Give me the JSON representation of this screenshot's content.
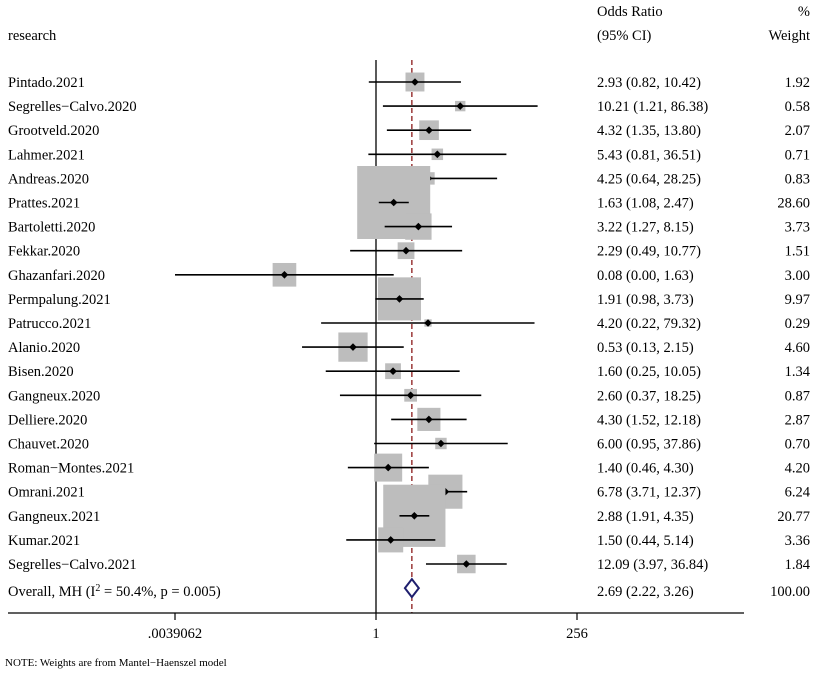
{
  "chart_data": {
    "type": "forest",
    "headers": {
      "study": "research",
      "effect_line1": "Odds Ratio",
      "effect_line2": "(95% CI)",
      "weight_line1": "%",
      "weight_line2": "Weight"
    },
    "scale": "log2",
    "xlim": [
      0.0039062,
      256
    ],
    "ticks": [
      {
        "value": 0.0039062,
        "label": ".0039062"
      },
      {
        "value": 1,
        "label": "1"
      },
      {
        "value": 256,
        "label": "256"
      }
    ],
    "studies": [
      {
        "name": "Pintado.2021",
        "or": 2.93,
        "lo": 0.82,
        "hi": 10.42,
        "ci_text": "2.93 (0.82, 10.42)",
        "weight": 1.92,
        "weight_text": "1.92"
      },
      {
        "name": "Segrelles−Calvo.2020",
        "or": 10.21,
        "lo": 1.21,
        "hi": 86.38,
        "ci_text": "10.21 (1.21, 86.38)",
        "weight": 0.58,
        "weight_text": "0.58"
      },
      {
        "name": "Grootveld.2020",
        "or": 4.32,
        "lo": 1.35,
        "hi": 13.8,
        "ci_text": "4.32 (1.35, 13.80)",
        "weight": 2.07,
        "weight_text": "2.07"
      },
      {
        "name": "Lahmer.2021",
        "or": 5.43,
        "lo": 0.81,
        "hi": 36.51,
        "ci_text": "5.43 (0.81, 36.51)",
        "weight": 0.71,
        "weight_text": "0.71"
      },
      {
        "name": "Andreas.2020",
        "or": 4.25,
        "lo": 0.64,
        "hi": 28.25,
        "ci_text": "4.25 (0.64, 28.25)",
        "weight": 0.83,
        "weight_text": "0.83"
      },
      {
        "name": "Prattes.2021",
        "or": 1.63,
        "lo": 1.08,
        "hi": 2.47,
        "ci_text": "1.63 (1.08, 2.47)",
        "weight": 28.6,
        "weight_text": "28.60"
      },
      {
        "name": "Bartoletti.2020",
        "or": 3.22,
        "lo": 1.27,
        "hi": 8.15,
        "ci_text": "3.22 (1.27, 8.15)",
        "weight": 3.73,
        "weight_text": "3.73"
      },
      {
        "name": "Fekkar.2020",
        "or": 2.29,
        "lo": 0.49,
        "hi": 10.77,
        "ci_text": "2.29 (0.49, 10.77)",
        "weight": 1.51,
        "weight_text": "1.51"
      },
      {
        "name": "Ghazanfari.2020",
        "or": 0.08,
        "lo": 0.0,
        "hi": 1.63,
        "lo_plot": 0.0039062,
        "ci_text": "0.08 (0.00, 1.63)",
        "weight": 3.0,
        "weight_text": "3.00"
      },
      {
        "name": "Permpalung.2021",
        "or": 1.91,
        "lo": 0.98,
        "hi": 3.73,
        "ci_text": "1.91 (0.98, 3.73)",
        "weight": 9.97,
        "weight_text": "9.97"
      },
      {
        "name": "Patrucco.2021",
        "or": 4.2,
        "lo": 0.22,
        "hi": 79.32,
        "ci_text": "4.20 (0.22, 79.32)",
        "weight": 0.29,
        "weight_text": "0.29"
      },
      {
        "name": "Alanio.2020",
        "or": 0.53,
        "lo": 0.13,
        "hi": 2.15,
        "ci_text": "0.53 (0.13, 2.15)",
        "weight": 4.6,
        "weight_text": "4.60"
      },
      {
        "name": "Bisen.2020",
        "or": 1.6,
        "lo": 0.25,
        "hi": 10.05,
        "ci_text": "1.60 (0.25, 10.05)",
        "weight": 1.34,
        "weight_text": "1.34"
      },
      {
        "name": "Gangneux.2020",
        "or": 2.6,
        "lo": 0.37,
        "hi": 18.25,
        "ci_text": "2.60 (0.37, 18.25)",
        "weight": 0.87,
        "weight_text": "0.87"
      },
      {
        "name": "Delliere.2020",
        "or": 4.3,
        "lo": 1.52,
        "hi": 12.18,
        "ci_text": "4.30 (1.52, 12.18)",
        "weight": 2.87,
        "weight_text": "2.87"
      },
      {
        "name": "Chauvet.2020",
        "or": 6.0,
        "lo": 0.95,
        "hi": 37.86,
        "ci_text": "6.00 (0.95, 37.86)",
        "weight": 0.7,
        "weight_text": "0.70"
      },
      {
        "name": "Roman−Montes.2021",
        "or": 1.4,
        "lo": 0.46,
        "hi": 4.3,
        "ci_text": "1.40 (0.46, 4.30)",
        "weight": 4.2,
        "weight_text": "4.20"
      },
      {
        "name": "Omrani.2021",
        "or": 6.78,
        "lo": 3.71,
        "hi": 12.37,
        "ci_text": "6.78 (3.71, 12.37)",
        "weight": 6.24,
        "weight_text": "6.24"
      },
      {
        "name": "Gangneux.2021",
        "or": 2.88,
        "lo": 1.91,
        "hi": 4.35,
        "ci_text": "2.88 (1.91, 4.35)",
        "weight": 20.77,
        "weight_text": "20.77"
      },
      {
        "name": "Kumar.2021",
        "or": 1.5,
        "lo": 0.44,
        "hi": 5.14,
        "ci_text": "1.50 (0.44, 5.14)",
        "weight": 3.36,
        "weight_text": "3.36"
      },
      {
        "name": "Segrelles−Calvo.2021",
        "or": 12.09,
        "lo": 3.97,
        "hi": 36.84,
        "ci_text": "12.09 (3.97, 36.84)",
        "weight": 1.84,
        "weight_text": "1.84"
      }
    ],
    "overall": {
      "label_prefix": "Overall, MH (I",
      "label_sup": "2",
      "label_suffix": " = 50.4%, p = 0.005)",
      "or": 2.69,
      "lo": 2.22,
      "hi": 3.26,
      "ci_text": "2.69 (2.22, 3.26)",
      "weight_text": "100.00"
    },
    "note": "NOTE: Weights are from Mantel−Haenszel model",
    "colors": {
      "box": "#bdbdbd",
      "ref_line": "#8b1a1a",
      "diamond": "#1f1f6e",
      "ink": "#000000"
    }
  }
}
